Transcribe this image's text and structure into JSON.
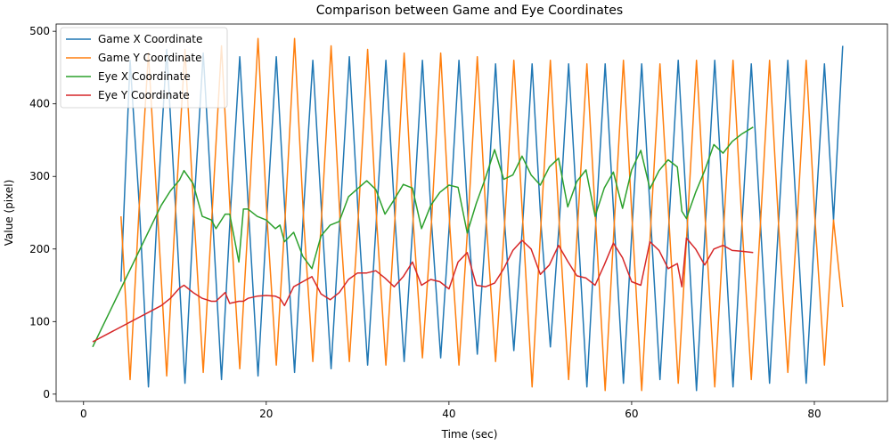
{
  "chart_data": {
    "type": "line",
    "title": "Comparison between Game and Eye Coordinates",
    "xlabel": "Time (sec)",
    "ylabel": "Value (pixel)",
    "xlim": [
      -3,
      88
    ],
    "ylim": [
      -10,
      510
    ],
    "xticks": [
      0,
      20,
      40,
      60,
      80
    ],
    "yticks": [
      0,
      100,
      200,
      300,
      400,
      500
    ],
    "grid": false,
    "legend_position": "top-left",
    "series": [
      {
        "name": "Game X Coordinate",
        "color": "#1f77b4",
        "x": [
          4.1,
          5.1,
          6.1,
          7.1,
          8.1,
          9.1,
          10.1,
          11.1,
          12.1,
          13.1,
          14.1,
          15.1,
          16.1,
          17.1,
          18.1,
          19.1,
          20.1,
          21.1,
          22.1,
          23.1,
          24.1,
          25.1,
          26.1,
          27.1,
          28.1,
          29.1,
          30.1,
          31.1,
          32.1,
          33.1,
          34.1,
          35.1,
          36.1,
          37.1,
          38.1,
          39.1,
          40.1,
          41.1,
          42.1,
          43.1,
          44.1,
          45.1,
          46.1,
          47.1,
          48.1,
          49.1,
          50.1,
          51.1,
          52.1,
          53.1,
          54.1,
          55.1,
          56.1,
          57.1,
          58.1,
          59.1,
          60.1,
          61.1,
          62.1,
          63.1,
          64.1,
          65.1,
          66.1,
          67.1,
          68.1,
          69.1,
          70.1,
          71.1,
          72.1,
          73.1,
          74.1,
          75.1,
          76.1,
          77.1,
          78.1,
          79.1,
          80.1,
          81.1,
          82.1,
          83.1
        ],
        "y": [
          155,
          460,
          260,
          10,
          260,
          475,
          250,
          15,
          260,
          470,
          250,
          20,
          255,
          465,
          245,
          25,
          250,
          465,
          240,
          30,
          255,
          460,
          240,
          35,
          250,
          465,
          240,
          40,
          250,
          460,
          240,
          45,
          245,
          460,
          235,
          50,
          245,
          460,
          240,
          55,
          240,
          455,
          235,
          60,
          240,
          455,
          230,
          65,
          240,
          455,
          235,
          10,
          240,
          455,
          235,
          15,
          240,
          455,
          235,
          20,
          240,
          460,
          235,
          5,
          240,
          460,
          235,
          10,
          240,
          455,
          235,
          15,
          240,
          460,
          235,
          15,
          240,
          455,
          240,
          480
        ]
      },
      {
        "name": "Game Y Coordinate",
        "color": "#ff7f0e",
        "x": [
          4.1,
          5.1,
          6.1,
          7.1,
          8.1,
          9.1,
          10.1,
          11.1,
          12.1,
          13.1,
          14.1,
          15.1,
          16.1,
          17.1,
          18.1,
          19.1,
          20.1,
          21.1,
          22.1,
          23.1,
          24.1,
          25.1,
          26.1,
          27.1,
          28.1,
          29.1,
          30.1,
          31.1,
          32.1,
          33.1,
          34.1,
          35.1,
          36.1,
          37.1,
          38.1,
          39.1,
          40.1,
          41.1,
          42.1,
          43.1,
          44.1,
          45.1,
          46.1,
          47.1,
          48.1,
          49.1,
          50.1,
          51.1,
          52.1,
          53.1,
          54.1,
          55.1,
          56.1,
          57.1,
          58.1,
          59.1,
          60.1,
          61.1,
          62.1,
          63.1,
          64.1,
          65.1,
          66.1,
          67.1,
          68.1,
          69.1,
          70.1,
          71.1,
          72.1,
          73.1,
          74.1,
          75.1,
          76.1,
          77.1,
          78.1,
          79.1,
          80.1,
          81.1,
          82.1,
          83.1
        ],
        "y": [
          245,
          20,
          260,
          470,
          250,
          25,
          260,
          475,
          245,
          30,
          255,
          480,
          240,
          35,
          255,
          490,
          240,
          40,
          250,
          490,
          240,
          45,
          255,
          480,
          235,
          45,
          250,
          475,
          235,
          40,
          245,
          470,
          235,
          50,
          240,
          470,
          230,
          40,
          240,
          465,
          235,
          45,
          235,
          460,
          235,
          10,
          240,
          460,
          230,
          20,
          235,
          455,
          230,
          5,
          235,
          460,
          230,
          5,
          235,
          455,
          235,
          15,
          235,
          460,
          230,
          10,
          235,
          460,
          230,
          20,
          235,
          460,
          230,
          30,
          235,
          460,
          235,
          40,
          240,
          120
        ]
      },
      {
        "name": "Eye X Coordinate",
        "color": "#2ca02c",
        "x": [
          1,
          8.5,
          9.5,
          10.5,
          11,
          12,
          13,
          14,
          14.5,
          15.5,
          16,
          17,
          17.5,
          18,
          19,
          20,
          21,
          21.5,
          22,
          23,
          24,
          25,
          26,
          27,
          28,
          29,
          30,
          31,
          32,
          33,
          34,
          35,
          36,
          37,
          38,
          39,
          40,
          41,
          42,
          43,
          44,
          45,
          46,
          47,
          48,
          49,
          50,
          51,
          52,
          53,
          54,
          55,
          56,
          57,
          58,
          59,
          60,
          61,
          62,
          63,
          64,
          65,
          65.5,
          66,
          67,
          68,
          69,
          70,
          71,
          72,
          73.3
        ],
        "y": [
          65,
          260,
          280,
          295,
          308,
          290,
          245,
          240,
          228,
          248,
          248,
          182,
          255,
          255,
          245,
          240,
          228,
          233,
          210,
          223,
          190,
          173,
          218,
          233,
          238,
          272,
          283,
          294,
          282,
          248,
          268,
          289,
          284,
          228,
          260,
          278,
          288,
          285,
          222,
          263,
          298,
          337,
          296,
          302,
          328,
          302,
          288,
          313,
          325,
          258,
          293,
          309,
          245,
          284,
          306,
          256,
          309,
          336,
          283,
          308,
          323,
          313,
          252,
          242,
          278,
          308,
          344,
          332,
          348,
          358,
          368
        ]
      },
      {
        "name": "Eye Y Coordinate",
        "color": "#d62728",
        "x": [
          1,
          8.5,
          9.5,
          10.5,
          11,
          12,
          13,
          14,
          14.5,
          15.5,
          16,
          17,
          17.5,
          18,
          19,
          20,
          21,
          21.5,
          22,
          23,
          24,
          25,
          26,
          27,
          28,
          29,
          30,
          31,
          32,
          33,
          34,
          35,
          36,
          37,
          38,
          39,
          40,
          41,
          42,
          43,
          44,
          45,
          46,
          47,
          48,
          49,
          50,
          51,
          52,
          53,
          54,
          55,
          56,
          57,
          58,
          59,
          60,
          61,
          62,
          63,
          64,
          65,
          65.5,
          66,
          67,
          68,
          69,
          70,
          71,
          72,
          73.3
        ],
        "y": [
          72,
          122,
          132,
          146,
          150,
          140,
          132,
          128,
          128,
          140,
          125,
          128,
          128,
          132,
          135,
          136,
          135,
          132,
          122,
          148,
          155,
          162,
          138,
          130,
          140,
          158,
          167,
          167,
          170,
          160,
          148,
          162,
          182,
          150,
          158,
          155,
          145,
          182,
          195,
          150,
          148,
          153,
          173,
          198,
          212,
          200,
          165,
          178,
          205,
          183,
          163,
          160,
          150,
          178,
          208,
          188,
          155,
          150,
          210,
          198,
          173,
          180,
          148,
          215,
          200,
          178,
          200,
          205,
          198,
          197,
          195
        ]
      }
    ]
  }
}
